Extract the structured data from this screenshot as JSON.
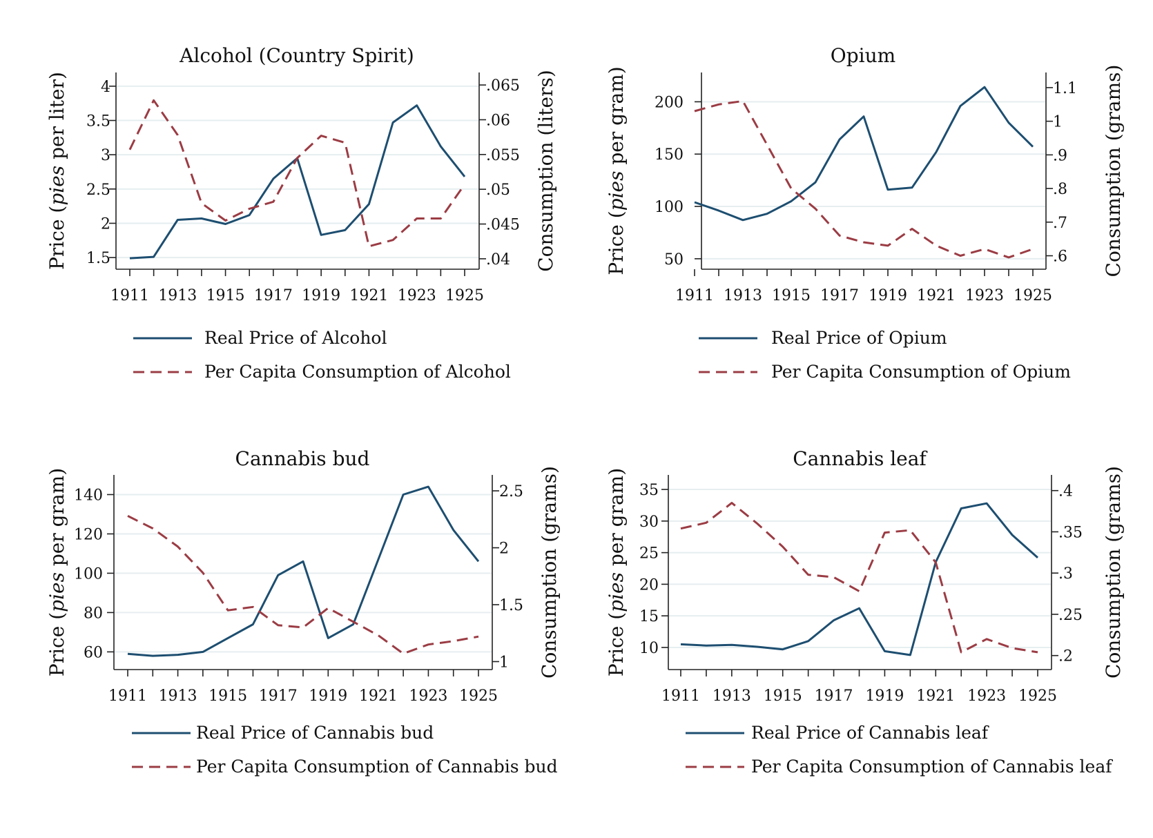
{
  "colors": {
    "price": "#1d4e70",
    "consumption": "#9b3c44",
    "grid": "#e6eef0",
    "axis": "#222222"
  },
  "chart_data": [
    {
      "type": "line",
      "title": "Alcohol (Country Spirit)",
      "ylabel_left": {
        "pre": "Price (",
        "em": "pies",
        "post": " per liter)"
      },
      "ylabel_right": "Consumption (liters)",
      "x": [
        1911,
        1912,
        1913,
        1914,
        1915,
        1916,
        1917,
        1918,
        1919,
        1920,
        1921,
        1922,
        1923,
        1924,
        1925
      ],
      "xticks": [
        1911,
        1913,
        1915,
        1917,
        1919,
        1921,
        1923,
        1925
      ],
      "ylim_left": [
        1.33,
        4.2
      ],
      "yticks_left": [
        {
          "v": 1.5,
          "t": "1.5"
        },
        {
          "v": 2,
          "t": "2"
        },
        {
          "v": 2.5,
          "t": "2.5"
        },
        {
          "v": 3,
          "t": "3"
        },
        {
          "v": 3.5,
          "t": "3.5"
        },
        {
          "v": 4,
          "t": "4"
        }
      ],
      "ylim_right": [
        0.0385,
        0.0668
      ],
      "yticks_right": [
        {
          "v": 0.04,
          "t": ".04"
        },
        {
          "v": 0.045,
          "t": ".045"
        },
        {
          "v": 0.05,
          "t": ".05"
        },
        {
          "v": 0.055,
          "t": ".055"
        },
        {
          "v": 0.06,
          "t": ".06"
        },
        {
          "v": 0.065,
          "t": ".065"
        }
      ],
      "grid": true,
      "legend": "bottom",
      "series": [
        {
          "name": "Real Price of Alcohol",
          "axis": "left",
          "style": "solid",
          "values": [
            1.49,
            1.51,
            2.05,
            2.07,
            1.99,
            2.12,
            2.65,
            2.95,
            1.83,
            1.9,
            2.28,
            3.47,
            3.72,
            3.12,
            2.68
          ]
        },
        {
          "name": "Per Capita Consumption of Alcohol",
          "axis": "right",
          "style": "dashed",
          "values": [
            0.0557,
            0.0628,
            0.0578,
            0.048,
            0.0455,
            0.0472,
            0.0482,
            0.0545,
            0.0577,
            0.0567,
            0.0418,
            0.0427,
            0.0458,
            0.0458,
            0.0507
          ]
        }
      ]
    },
    {
      "type": "line",
      "title": "Opium",
      "ylabel_left": {
        "pre": "Price (",
        "em": "pies",
        "post": " per gram)"
      },
      "ylabel_right": "Consumption (grams)",
      "x": [
        1911,
        1912,
        1913,
        1914,
        1915,
        1916,
        1917,
        1918,
        1919,
        1920,
        1921,
        1922,
        1923,
        1924,
        1925
      ],
      "xticks": [
        1911,
        1913,
        1915,
        1917,
        1919,
        1921,
        1923,
        1925
      ],
      "ylim_left": [
        40,
        228
      ],
      "yticks_left": [
        {
          "v": 50,
          "t": "50"
        },
        {
          "v": 100,
          "t": "100"
        },
        {
          "v": 150,
          "t": "150"
        },
        {
          "v": 200,
          "t": "200"
        }
      ],
      "ylim_right": [
        0.56,
        1.145
      ],
      "yticks_right": [
        {
          "v": 0.6,
          "t": ".6"
        },
        {
          "v": 0.7,
          "t": ".7"
        },
        {
          "v": 0.8,
          "t": ".8"
        },
        {
          "v": 0.9,
          "t": ".9"
        },
        {
          "v": 1.0,
          "t": "1"
        },
        {
          "v": 1.1,
          "t": "1.1"
        }
      ],
      "grid": true,
      "legend": "bottom",
      "series": [
        {
          "name": "Real Price of Opium",
          "axis": "left",
          "style": "solid",
          "values": [
            104,
            96,
            87,
            93,
            105,
            123,
            164,
            186,
            116,
            118,
            152,
            196,
            214,
            180,
            157
          ]
        },
        {
          "name": "Per Capita Consumption of Opium",
          "axis": "right",
          "style": "dashed",
          "values": [
            1.03,
            1.05,
            1.06,
            0.93,
            0.8,
            0.74,
            0.66,
            0.64,
            0.63,
            0.68,
            0.63,
            0.6,
            0.62,
            0.595,
            0.62
          ]
        }
      ]
    },
    {
      "type": "line",
      "title": "Cannabis bud",
      "ylabel_left": {
        "pre": "Price (",
        "em": "pies",
        "post": " per gram)"
      },
      "ylabel_right": "Consumption (grams)",
      "x": [
        1911,
        1912,
        1913,
        1914,
        1915,
        1916,
        1917,
        1918,
        1919,
        1920,
        1921,
        1922,
        1923,
        1924,
        1925
      ],
      "xticks": [
        1911,
        1913,
        1915,
        1917,
        1919,
        1921,
        1923,
        1925
      ],
      "ylim_left": [
        51,
        150
      ],
      "yticks_left": [
        {
          "v": 60,
          "t": "60"
        },
        {
          "v": 80,
          "t": "80"
        },
        {
          "v": 100,
          "t": "100"
        },
        {
          "v": 120,
          "t": "120"
        },
        {
          "v": 140,
          "t": "140"
        }
      ],
      "ylim_right": [
        0.93,
        2.64
      ],
      "yticks_right": [
        {
          "v": 1,
          "t": "1"
        },
        {
          "v": 1.5,
          "t": "1.5"
        },
        {
          "v": 2,
          "t": "2"
        },
        {
          "v": 2.5,
          "t": "2.5"
        }
      ],
      "grid": true,
      "legend": "bottom",
      "series": [
        {
          "name": "Real Price of Cannabis bud",
          "axis": "left",
          "style": "solid",
          "values": [
            59,
            58,
            58.5,
            60,
            67,
            74,
            99,
            106,
            67,
            74,
            107,
            140,
            144,
            122,
            106
          ]
        },
        {
          "name": "Per Capita Consumption of Cannabis bud",
          "axis": "right",
          "style": "dashed",
          "values": [
            2.28,
            2.17,
            2.01,
            1.78,
            1.45,
            1.48,
            1.32,
            1.3,
            1.47,
            1.35,
            1.23,
            1.07,
            1.15,
            1.18,
            1.22
          ]
        }
      ]
    },
    {
      "type": "line",
      "title": "Cannabis leaf",
      "ylabel_left": {
        "pre": "Price (",
        "em": "pies",
        "post": " per gram)"
      },
      "ylabel_right": "Consumption (grams)",
      "x": [
        1911,
        1912,
        1913,
        1914,
        1915,
        1916,
        1917,
        1918,
        1919,
        1920,
        1921,
        1922,
        1923,
        1924,
        1925
      ],
      "xticks": [
        1911,
        1913,
        1915,
        1917,
        1919,
        1921,
        1923,
        1925
      ],
      "ylim_left": [
        6.5,
        37.3
      ],
      "yticks_left": [
        {
          "v": 10,
          "t": "10"
        },
        {
          "v": 15,
          "t": "15"
        },
        {
          "v": 20,
          "t": "20"
        },
        {
          "v": 25,
          "t": "25"
        },
        {
          "v": 30,
          "t": "30"
        },
        {
          "v": 35,
          "t": "35"
        }
      ],
      "ylim_right": [
        0.183,
        0.419
      ],
      "yticks_right": [
        {
          "v": 0.2,
          "t": ".2"
        },
        {
          "v": 0.25,
          "t": ".25"
        },
        {
          "v": 0.3,
          "t": ".3"
        },
        {
          "v": 0.35,
          "t": ".35"
        },
        {
          "v": 0.4,
          "t": ".4"
        }
      ],
      "grid": true,
      "legend": "bottom",
      "series": [
        {
          "name": "Real Price of Cannabis leaf",
          "axis": "left",
          "style": "solid",
          "values": [
            10.5,
            10.3,
            10.4,
            10.1,
            9.7,
            11.0,
            14.3,
            16.2,
            9.4,
            8.8,
            23.5,
            32.0,
            32.8,
            27.8,
            24.2
          ]
        },
        {
          "name": "Per Capita Consumption of Cannabis leaf",
          "axis": "right",
          "style": "dashed",
          "values": [
            0.354,
            0.361,
            0.385,
            0.36,
            0.332,
            0.298,
            0.295,
            0.278,
            0.349,
            0.352,
            0.313,
            0.204,
            0.22,
            0.209,
            0.204
          ]
        }
      ]
    }
  ]
}
